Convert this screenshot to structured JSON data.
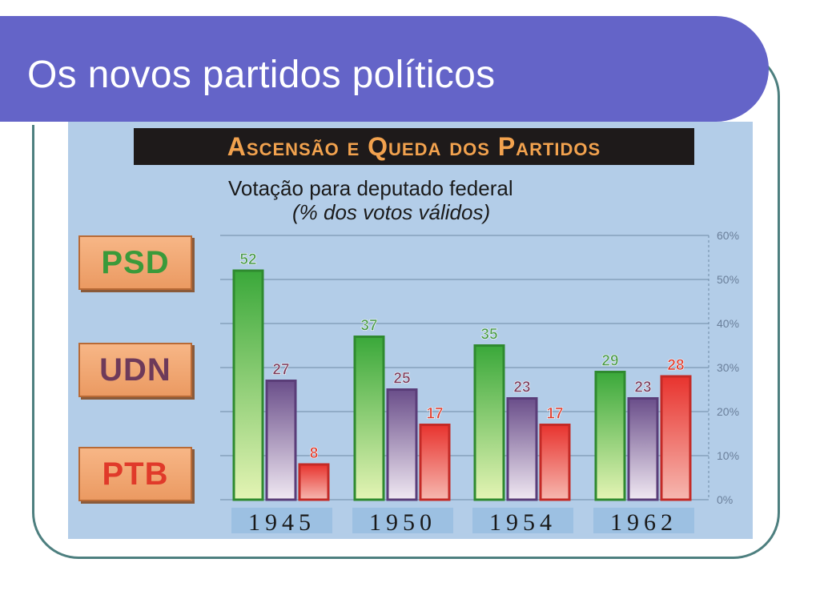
{
  "slide": {
    "title": "Os novos partidos políticos"
  },
  "chart_data": {
    "type": "bar",
    "header": "Ascensão e Queda dos Partidos",
    "title": "Votação para deputado federal",
    "subtitle": "(% dos votos válidos)",
    "categories": [
      "1945",
      "1950",
      "1954",
      "1962"
    ],
    "series": [
      {
        "name": "PSD",
        "values": [
          52,
          37,
          35,
          29
        ],
        "color": "#3fa83a",
        "label_color": "#4a9a4a"
      },
      {
        "name": "UDN",
        "values": [
          27,
          25,
          23,
          23
        ],
        "color": "#6e4f8e",
        "label_color": "#7a3a5a"
      },
      {
        "name": "PTB",
        "values": [
          8,
          17,
          17,
          28
        ],
        "color": "#e8332e",
        "label_color": "#e03a2a"
      }
    ],
    "ylim": [
      0,
      60
    ],
    "y_ticks": [
      "0%",
      "10%",
      "20%",
      "30%",
      "40%",
      "50%",
      "60%"
    ],
    "grid": true,
    "legend_position": "left"
  }
}
